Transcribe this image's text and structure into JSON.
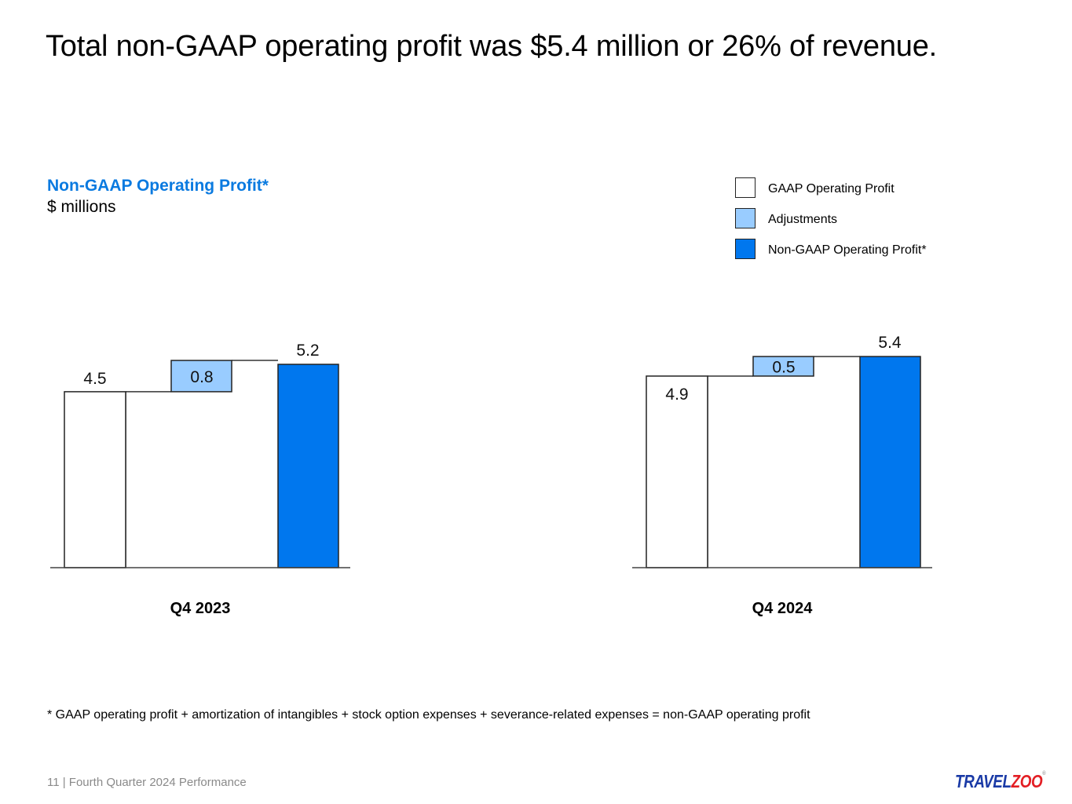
{
  "slide": {
    "title": "Total non-GAAP operating profit was $5.4 million or 26% of revenue.",
    "subtitle": "Non-GAAP Operating Profit*",
    "units": "$ millions",
    "footnote": "* GAAP operating profit + amortization of intangibles + stock option expenses + severance-related expenses  = non-GAAP operating profit",
    "footer": "11 | Fourth Quarter 2024 Performance",
    "logo": {
      "part1": "TRAVEL",
      "part2": "ZOO",
      "reg": "®"
    }
  },
  "legend": [
    {
      "label": "GAAP Operating Profit",
      "color": "#ffffff"
    },
    {
      "label": "Adjustments",
      "color": "#99ccff"
    },
    {
      "label": "Non-GAAP Operating Profit*",
      "color": "#0077ee"
    }
  ],
  "chart_data": [
    {
      "type": "bar",
      "subtype": "waterfall",
      "title": "Q4 2023",
      "xlabel": "Q4 2023",
      "ylabel": "$ millions",
      "categories": [
        "GAAP Operating Profit",
        "Adjustments",
        "Non-GAAP Operating Profit*"
      ],
      "values": [
        4.5,
        0.8,
        5.2
      ],
      "data_labels": [
        "4.5",
        "0.8",
        "5.2"
      ],
      "ylim": [
        0,
        5.5
      ],
      "grid": false,
      "legend": "top-right"
    },
    {
      "type": "bar",
      "subtype": "waterfall",
      "title": "Q4 2024",
      "xlabel": "Q4 2024",
      "ylabel": "$ millions",
      "categories": [
        "GAAP Operating Profit",
        "Adjustments",
        "Non-GAAP Operating Profit*"
      ],
      "values": [
        4.9,
        0.5,
        5.4
      ],
      "data_labels": [
        "4.9",
        "0.5",
        "5.4"
      ],
      "ylim": [
        0,
        5.5
      ],
      "grid": false,
      "legend": "top-right"
    }
  ]
}
